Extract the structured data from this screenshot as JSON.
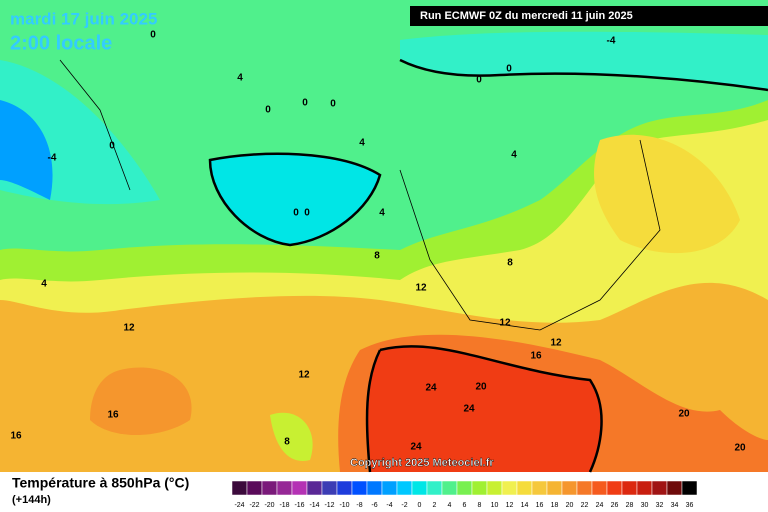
{
  "header": {
    "date": "mardi 17 juin 2025",
    "time": "2:00 locale",
    "run": "Run ECMWF 0Z du mercredi 11 juin 2025"
  },
  "map": {
    "contour_labels": [
      0,
      4,
      0,
      0,
      0,
      0,
      -4,
      4,
      0,
      0,
      4,
      8,
      4,
      12,
      12,
      12,
      16,
      12,
      12,
      24,
      20,
      24,
      16,
      16,
      8,
      24,
      20,
      20,
      0,
      0,
      -4,
      4,
      8
    ]
  },
  "footer": {
    "copyright": "Copyright 2025 Meteociel.fr",
    "title": "Température à 850hPa (°C)",
    "lead": "(+144h)"
  },
  "scale": {
    "labels": [
      -24,
      -22,
      -20,
      -18,
      -16,
      -14,
      -12,
      -10,
      -8,
      -6,
      -4,
      -2,
      0,
      2,
      4,
      6,
      8,
      10,
      12,
      14,
      16,
      18,
      20,
      22,
      24,
      26,
      28,
      30,
      32,
      34,
      36
    ],
    "colors": [
      "#3c0a3c",
      "#5a0a5a",
      "#7a1a7a",
      "#962896",
      "#b432b4",
      "#5a2896",
      "#3c3cb4",
      "#1e3cdc",
      "#0050ff",
      "#0078ff",
      "#00a0ff",
      "#00c8ff",
      "#00e6e6",
      "#32f0c8",
      "#50f08c",
      "#78f050",
      "#a0f032",
      "#c8f032",
      "#f0f050",
      "#f5dc3c",
      "#f5c83c",
      "#f5b432",
      "#f5962d",
      "#f57828",
      "#f55a1e",
      "#f03c14",
      "#dc280f",
      "#c81e0f",
      "#a01414",
      "#6e0a0a",
      "#000000"
    ]
  }
}
